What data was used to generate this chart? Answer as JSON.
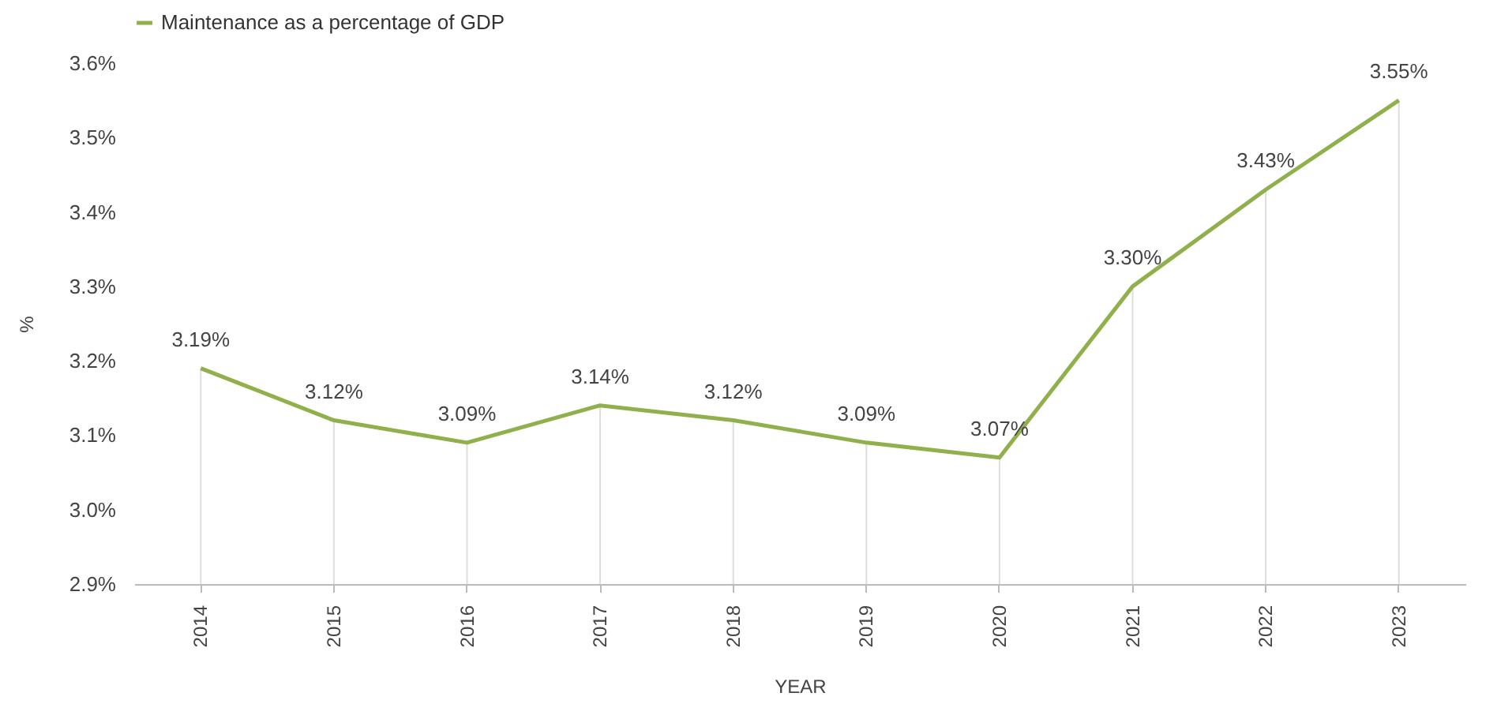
{
  "chart_data": {
    "type": "line",
    "xlabel": "YEAR",
    "ylabel": "%",
    "categories": [
      "2014",
      "2015",
      "2016",
      "2017",
      "2018",
      "2019",
      "2020",
      "2021",
      "2022",
      "2023"
    ],
    "series": [
      {
        "name": "Maintenance as a percentage of GDP",
        "color": "#8fb04a",
        "values": [
          3.19,
          3.12,
          3.09,
          3.14,
          3.12,
          3.09,
          3.07,
          3.3,
          3.43,
          3.55
        ],
        "value_labels": [
          "3.19%",
          "3.12%",
          "3.09%",
          "3.14%",
          "3.12%",
          "3.09%",
          "3.07%",
          "3.30%",
          "3.43%",
          "3.55%"
        ]
      }
    ],
    "ylim": [
      2.9,
      3.6
    ],
    "yticks": [
      {
        "value": 2.9,
        "label": "2.9%"
      },
      {
        "value": 3.0,
        "label": "3.0%"
      },
      {
        "value": 3.1,
        "label": "3.1%"
      },
      {
        "value": 3.2,
        "label": "3.2%"
      },
      {
        "value": 3.3,
        "label": "3.3%"
      },
      {
        "value": 3.4,
        "label": "3.4%"
      },
      {
        "value": 3.5,
        "label": "3.5%"
      },
      {
        "value": 3.6,
        "label": "3.6%"
      }
    ],
    "grid": "x",
    "legend": "top",
    "marker": "none",
    "line_style": "solid"
  }
}
